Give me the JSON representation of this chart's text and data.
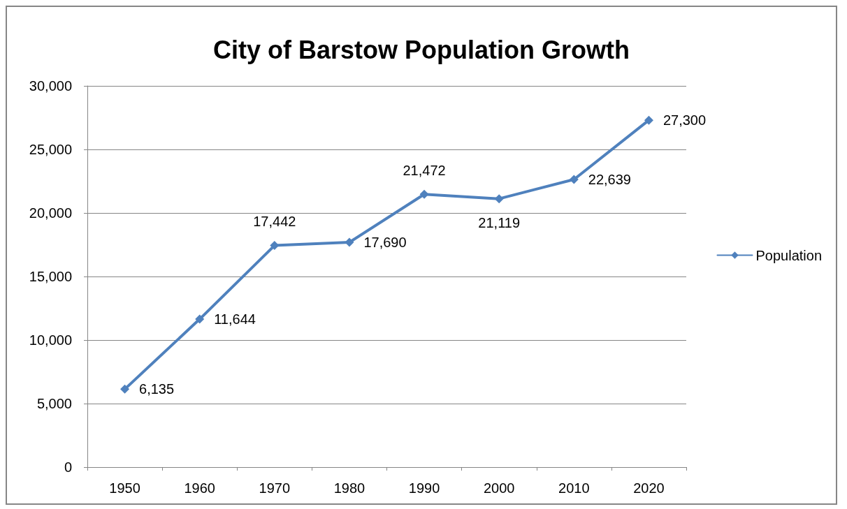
{
  "chart_data": {
    "type": "line",
    "title": "City of Barstow Population Growth",
    "categories": [
      "1950",
      "1960",
      "1970",
      "1980",
      "1990",
      "2000",
      "2010",
      "2020"
    ],
    "series": [
      {
        "name": "Population",
        "color": "#4f81bd",
        "values": [
          6135,
          11644,
          17442,
          17690,
          21472,
          21119,
          22639,
          27300
        ],
        "value_labels": [
          "6,135",
          "11,644",
          "17,442",
          "17,690",
          "21,472",
          "21,119",
          "22,639",
          "27,300"
        ]
      }
    ],
    "ylim": [
      0,
      30000
    ],
    "yticks": [
      0,
      {
        "value": 5000,
        "label": "5,000"
      },
      {
        "value": 10000,
        "label": "10,000"
      },
      {
        "value": 15000,
        "label": "15,000"
      },
      {
        "value": 20000,
        "label": "20,000"
      },
      {
        "value": 25000,
        "label": "25,000"
      },
      {
        "value": 30000,
        "label": "30,000"
      }
    ],
    "grid": "y",
    "legend": "right",
    "marker": "diamond"
  }
}
